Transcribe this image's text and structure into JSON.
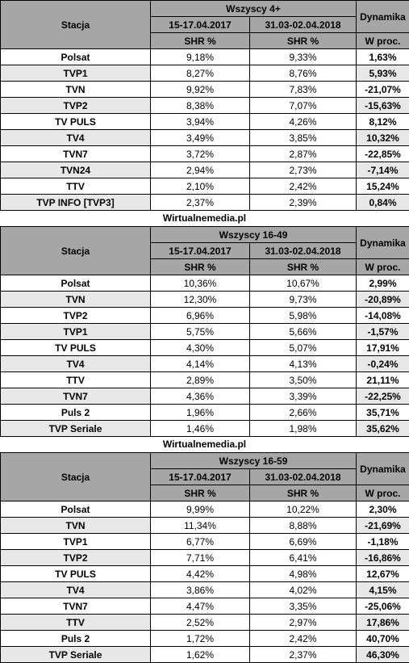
{
  "source": "Wirtualnemedia.pl",
  "header": {
    "station": "Stacja",
    "period1": "15-17.04.2017",
    "period2": "31.03-02.04.2018",
    "dynamics": "Dynamika",
    "shr": "SHR %",
    "wproc": "W proc."
  },
  "tables": [
    {
      "group": "Wszyscy 4+",
      "rows": [
        {
          "station": "Polsat",
          "v1": "9,18%",
          "v2": "9,33%",
          "dyn": "1,63%"
        },
        {
          "station": "TVP1",
          "v1": "8,27%",
          "v2": "8,76%",
          "dyn": "5,93%"
        },
        {
          "station": "TVN",
          "v1": "9,92%",
          "v2": "7,83%",
          "dyn": "-21,07%"
        },
        {
          "station": "TVP2",
          "v1": "8,38%",
          "v2": "7,07%",
          "dyn": "-15,63%"
        },
        {
          "station": "TV PULS",
          "v1": "3,94%",
          "v2": "4,26%",
          "dyn": "8,12%"
        },
        {
          "station": "TV4",
          "v1": "3,49%",
          "v2": "3,85%",
          "dyn": "10,32%"
        },
        {
          "station": "TVN7",
          "v1": "3,72%",
          "v2": "2,87%",
          "dyn": "-22,85%"
        },
        {
          "station": "TVN24",
          "v1": "2,94%",
          "v2": "2,73%",
          "dyn": "-7,14%"
        },
        {
          "station": "TTV",
          "v1": "2,10%",
          "v2": "2,42%",
          "dyn": "15,24%"
        },
        {
          "station": "TVP INFO [TVP3]",
          "v1": "2,37%",
          "v2": "2,39%",
          "dyn": "0,84%"
        }
      ]
    },
    {
      "group": "Wszyscy 16-49",
      "rows": [
        {
          "station": "Polsat",
          "v1": "10,36%",
          "v2": "10,67%",
          "dyn": "2,99%"
        },
        {
          "station": "TVN",
          "v1": "12,30%",
          "v2": "9,73%",
          "dyn": "-20,89%"
        },
        {
          "station": "TVP2",
          "v1": "6,96%",
          "v2": "5,98%",
          "dyn": "-14,08%"
        },
        {
          "station": "TVP1",
          "v1": "5,75%",
          "v2": "5,66%",
          "dyn": "-1,57%"
        },
        {
          "station": "TV PULS",
          "v1": "4,30%",
          "v2": "5,07%",
          "dyn": "17,91%"
        },
        {
          "station": "TV4",
          "v1": "4,14%",
          "v2": "4,13%",
          "dyn": "-0,24%"
        },
        {
          "station": "TTV",
          "v1": "2,89%",
          "v2": "3,50%",
          "dyn": "21,11%"
        },
        {
          "station": "TVN7",
          "v1": "4,36%",
          "v2": "3,39%",
          "dyn": "-22,25%"
        },
        {
          "station": "Puls 2",
          "v1": "1,96%",
          "v2": "2,66%",
          "dyn": "35,71%"
        },
        {
          "station": "TVP Seriale",
          "v1": "1,46%",
          "v2": "1,98%",
          "dyn": "35,62%"
        }
      ]
    },
    {
      "group": "Wszyscy 16-59",
      "rows": [
        {
          "station": "Polsat",
          "v1": "9,99%",
          "v2": "10,22%",
          "dyn": "2,30%"
        },
        {
          "station": "TVN",
          "v1": "11,34%",
          "v2": "8,88%",
          "dyn": "-21,69%"
        },
        {
          "station": "TVP1",
          "v1": "6,77%",
          "v2": "6,69%",
          "dyn": "-1,18%"
        },
        {
          "station": "TVP2",
          "v1": "7,71%",
          "v2": "6,41%",
          "dyn": "-16,86%"
        },
        {
          "station": "TV PULS",
          "v1": "4,42%",
          "v2": "4,98%",
          "dyn": "12,67%"
        },
        {
          "station": "TV4",
          "v1": "3,86%",
          "v2": "4,02%",
          "dyn": "4,15%"
        },
        {
          "station": "TVN7",
          "v1": "4,47%",
          "v2": "3,35%",
          "dyn": "-25,06%"
        },
        {
          "station": "TTV",
          "v1": "2,52%",
          "v2": "2,97%",
          "dyn": "17,86%"
        },
        {
          "station": "Puls 2",
          "v1": "1,72%",
          "v2": "2,42%",
          "dyn": "40,70%"
        },
        {
          "station": "TVP Seriale",
          "v1": "1,62%",
          "v2": "2,37%",
          "dyn": "46,30%"
        }
      ]
    }
  ]
}
